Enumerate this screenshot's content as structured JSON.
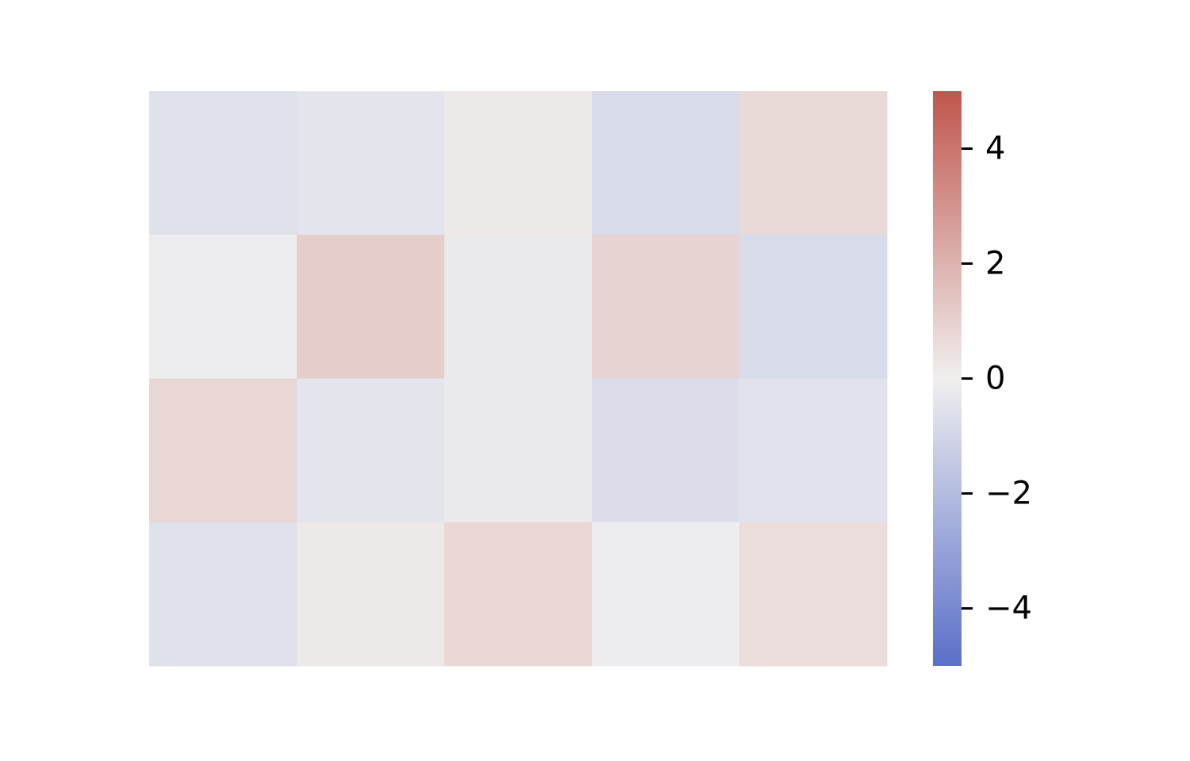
{
  "chart_data": {
    "type": "heatmap",
    "title": "",
    "xlabel": "",
    "ylabel": "",
    "rows": 4,
    "columns": 5,
    "values": [
      [
        -0.6,
        -0.4,
        0.2,
        -0.8,
        0.7
      ],
      [
        -0.1,
        1.1,
        -0.2,
        0.9,
        -0.8
      ],
      [
        0.8,
        -0.4,
        -0.2,
        -0.7,
        -0.5
      ],
      [
        -0.6,
        0.2,
        0.8,
        -0.1,
        0.6
      ]
    ],
    "vmin": -5,
    "vmax": 5,
    "colormap": {
      "low": "#5a6fc8",
      "mid": "#f0efef",
      "high": "#c0564d"
    },
    "grid": false,
    "colorbar": {
      "position": "right",
      "ticks": [
        4,
        2,
        0,
        -2,
        -4
      ],
      "tick_labels": [
        "4",
        "2",
        "0",
        "−2",
        "−4"
      ]
    }
  }
}
